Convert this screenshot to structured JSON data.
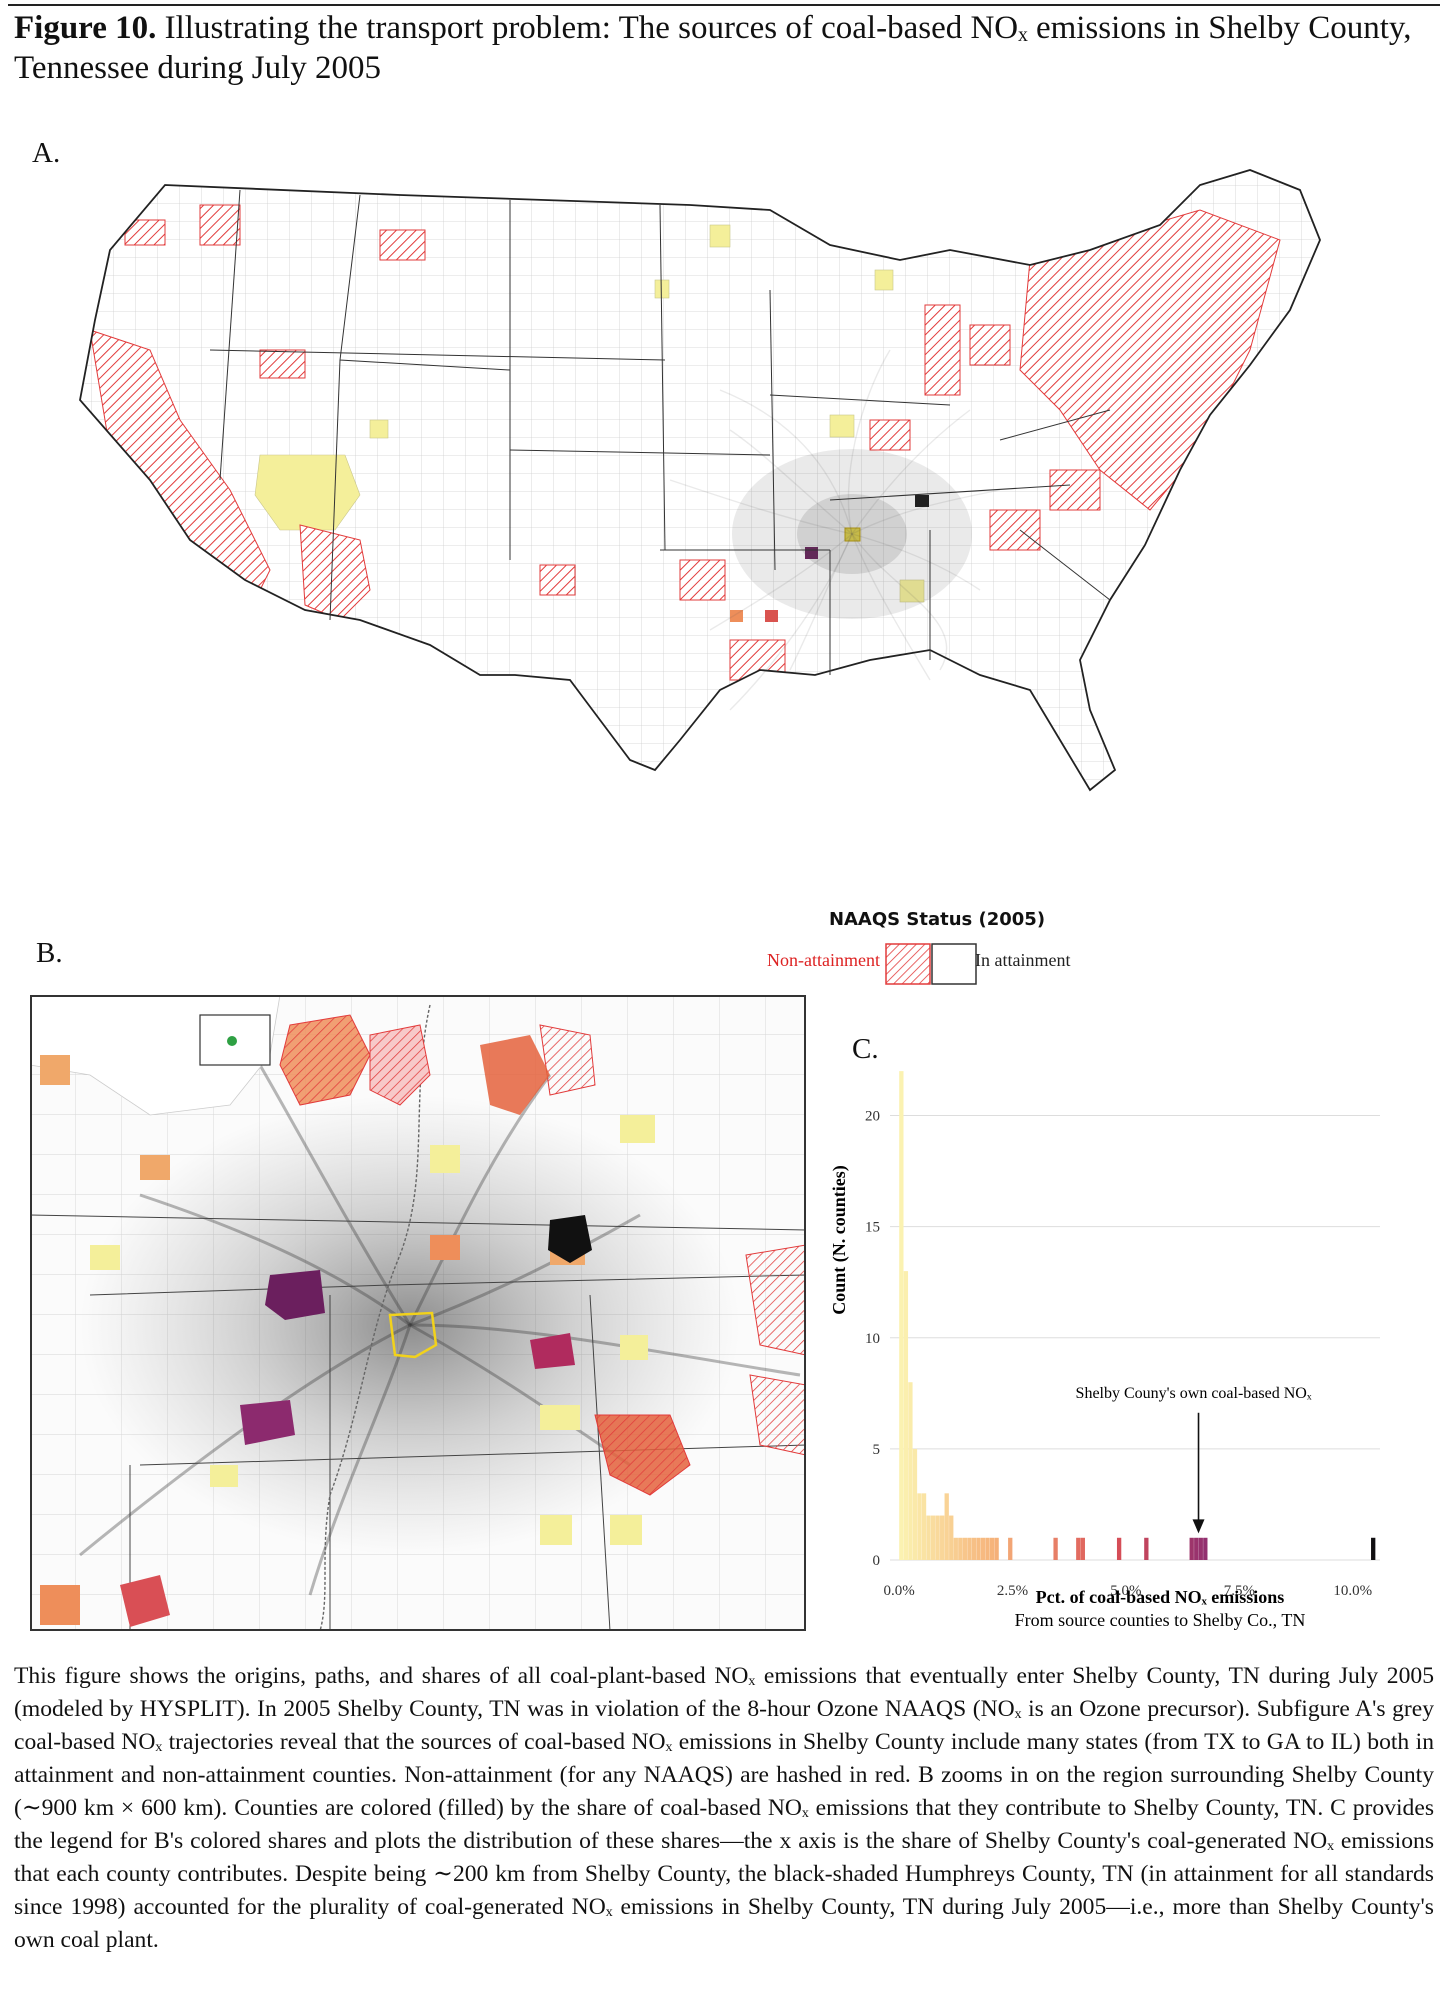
{
  "figure": {
    "label": "Figure 10.",
    "title_line1": "Illustrating the transport problem: The sources of coal-based NOₓ emissions in Shelby County,",
    "title_line2": "Tennessee during July 2005"
  },
  "panels": {
    "a": "A.",
    "b": "B.",
    "c": "C."
  },
  "legend": {
    "title": "NAAQS Status (2005)",
    "nonattainment": "Non-attainment",
    "attainment": "In attainment",
    "colors": {
      "nonattainment": "#e23b3b",
      "attainment": "#ffffff",
      "trajectory": "#555555",
      "shelby": "#f2d21b"
    }
  },
  "chart_data": {
    "type": "bar",
    "ylabel": "Count (N. counties)",
    "xlabel": "Pct. of coal-based NOₓ emissions",
    "xlabel_sub": "From source counties to Shelby Co., TN",
    "x_ticks": [
      "0.0%",
      "2.5%",
      "5.0%",
      "7.5%",
      "10.0%"
    ],
    "x_tick_values": [
      0,
      2.5,
      5,
      7.5,
      10
    ],
    "y_ticks": [
      "0",
      "5",
      "10",
      "15",
      "20"
    ],
    "y_tick_values": [
      0,
      5,
      10,
      15,
      20
    ],
    "xlim": [
      -0.2,
      10.6
    ],
    "ylim": [
      0,
      22.5
    ],
    "grid": true,
    "bins": [
      {
        "x": 0.05,
        "count": 22
      },
      {
        "x": 0.15,
        "count": 13
      },
      {
        "x": 0.25,
        "count": 8
      },
      {
        "x": 0.35,
        "count": 5
      },
      {
        "x": 0.45,
        "count": 3
      },
      {
        "x": 0.55,
        "count": 3
      },
      {
        "x": 0.65,
        "count": 2
      },
      {
        "x": 0.75,
        "count": 2
      },
      {
        "x": 0.85,
        "count": 2
      },
      {
        "x": 0.95,
        "count": 2
      },
      {
        "x": 1.05,
        "count": 3
      },
      {
        "x": 1.15,
        "count": 2
      },
      {
        "x": 1.25,
        "count": 1
      },
      {
        "x": 1.35,
        "count": 1
      },
      {
        "x": 1.45,
        "count": 1
      },
      {
        "x": 1.55,
        "count": 1
      },
      {
        "x": 1.65,
        "count": 1
      },
      {
        "x": 1.75,
        "count": 1
      },
      {
        "x": 1.85,
        "count": 1
      },
      {
        "x": 1.95,
        "count": 1
      },
      {
        "x": 2.05,
        "count": 1
      },
      {
        "x": 2.15,
        "count": 1
      },
      {
        "x": 2.45,
        "count": 1
      },
      {
        "x": 3.45,
        "count": 1
      },
      {
        "x": 3.95,
        "count": 1
      },
      {
        "x": 4.05,
        "count": 1
      },
      {
        "x": 4.85,
        "count": 1
      },
      {
        "x": 5.45,
        "count": 1
      },
      {
        "x": 6.45,
        "count": 1
      },
      {
        "x": 6.55,
        "count": 1
      },
      {
        "x": 6.65,
        "count": 1
      },
      {
        "x": 6.75,
        "count": 1
      },
      {
        "x": 10.45,
        "count": 1
      }
    ],
    "annotation": {
      "text": "Shelby Couny's own coal-based NOₓ",
      "x": 6.6,
      "y": 1.2
    }
  },
  "caption": "This figure shows the origins, paths, and shares of all coal-plant-based NOₓ emissions that eventually enter Shelby County, TN during July 2005 (modeled by HYSPLIT). In 2005 Shelby County, TN was in violation of the 8-hour Ozone NAAQS (NOₓ is an Ozone precursor). Subfigure A's grey coal-based NOₓ trajectories reveal that the sources of coal-based NOₓ emissions in Shelby County include many states (from TX to GA to IL) both in attainment and non-attainment counties. Non-attainment (for any NAAQS) are hashed in red. B zooms in on the region surrounding Shelby County (∼900 km × 600 km). Counties are colored (filled) by the share of coal-based NOₓ emissions that they contribute to Shelby County, TN. C provides the legend for B's colored shares and plots the distribution of these shares—the x axis is the share of Shelby County's coal-generated NOₓ emissions that each county contributes. Despite being ∼200 km from Shelby County, the black-shaded Humphreys County, TN (in attainment for all standards since 1998) accounted for the plurality of coal-generated NOₓ emissions in Shelby County, TN during July 2005—i.e., more than Shelby County's own coal plant."
}
